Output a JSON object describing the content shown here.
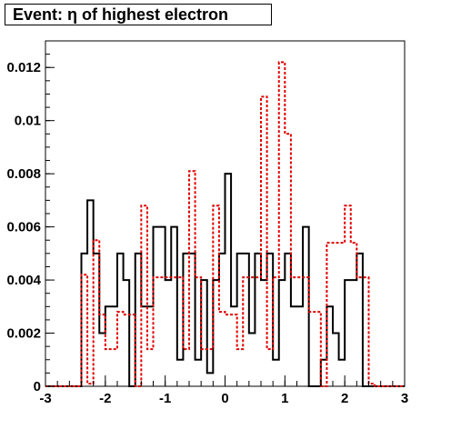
{
  "chart_data": {
    "type": "histogram",
    "title": "Event: η of highest electron",
    "xlabel": "",
    "ylabel": "",
    "xlim": [
      -3,
      3
    ],
    "ylim": [
      0,
      0.013
    ],
    "grid": false,
    "legend": "none",
    "x_ticks": [
      -3,
      -2,
      -1,
      0,
      1,
      2,
      3
    ],
    "x_tick_labels": [
      "-3",
      "-2",
      "-1",
      "0",
      "1",
      "2",
      "3"
    ],
    "y_ticks": [
      0,
      0.002,
      0.004,
      0.006,
      0.008,
      0.01,
      0.012
    ],
    "y_tick_labels": [
      "0",
      "0.002",
      "0.004",
      "0.006",
      "0.008",
      "0.01",
      "0.012"
    ],
    "bin_edges": [
      -3.0,
      -2.9,
      -2.8,
      -2.7,
      -2.6,
      -2.5,
      -2.4,
      -2.3,
      -2.2,
      -2.1,
      -2.0,
      -1.9,
      -1.8,
      -1.7,
      -1.6,
      -1.5,
      -1.4,
      -1.3,
      -1.2,
      -1.1,
      -1.0,
      -0.9,
      -0.8,
      -0.7,
      -0.6,
      -0.5,
      -0.4,
      -0.3,
      -0.2,
      -0.1,
      0.0,
      0.1,
      0.2,
      0.3,
      0.4,
      0.5,
      0.6,
      0.7,
      0.8,
      0.9,
      1.0,
      1.1,
      1.2,
      1.3,
      1.4,
      1.5,
      1.6,
      1.7,
      1.8,
      1.9,
      2.0,
      2.1,
      2.2,
      2.3,
      2.4,
      2.5,
      2.6,
      2.7,
      2.8,
      2.9,
      3.0
    ],
    "series": [
      {
        "color": "#000000",
        "style": "solid",
        "values": [
          0,
          0,
          0,
          0,
          0,
          0,
          0.005,
          0.007,
          0.005,
          0.002,
          0.003,
          0.003,
          0.005,
          0.004,
          0,
          0.005,
          0.003,
          0.003,
          0.006,
          0.006,
          0.004,
          0.006,
          0.001,
          0.005,
          0.005,
          0.001,
          0.004,
          0.0005,
          0.004,
          0.005,
          0.008,
          0.003,
          0.005,
          0.005,
          0.002,
          0.005,
          0.004,
          0.005,
          0.001,
          0.004,
          0.005,
          0.003,
          0.003,
          0.006,
          0,
          0,
          0.001,
          0.003,
          0.002,
          0.001,
          0.004,
          0.004,
          0.005,
          0,
          0,
          0,
          0,
          0,
          0,
          0
        ]
      },
      {
        "color": "#e00000",
        "style": "dashed",
        "values": [
          0,
          0,
          0,
          0,
          0,
          0,
          0.0042,
          0.0001,
          0.0055,
          0.0027,
          0.0014,
          0.0014,
          0.0028,
          0.0027,
          0.0027,
          0,
          0.0068,
          0.0014,
          0.0041,
          0.0041,
          0.0041,
          0.0041,
          0.0041,
          0.0014,
          0.0081,
          0.0041,
          0.0014,
          0.0014,
          0.0068,
          0.0028,
          0.0027,
          0.0027,
          0.0014,
          0.0041,
          0.0041,
          0.0041,
          0.0109,
          0.0014,
          0.0041,
          0.0122,
          0.0095,
          0.0041,
          0.0041,
          0.0041,
          0.0028,
          0.0028,
          0.0,
          0.0054,
          0.0054,
          0.0054,
          0.0068,
          0.0054,
          0.0041,
          0.0041,
          0.0001,
          0,
          0,
          0,
          0,
          0
        ]
      }
    ]
  }
}
